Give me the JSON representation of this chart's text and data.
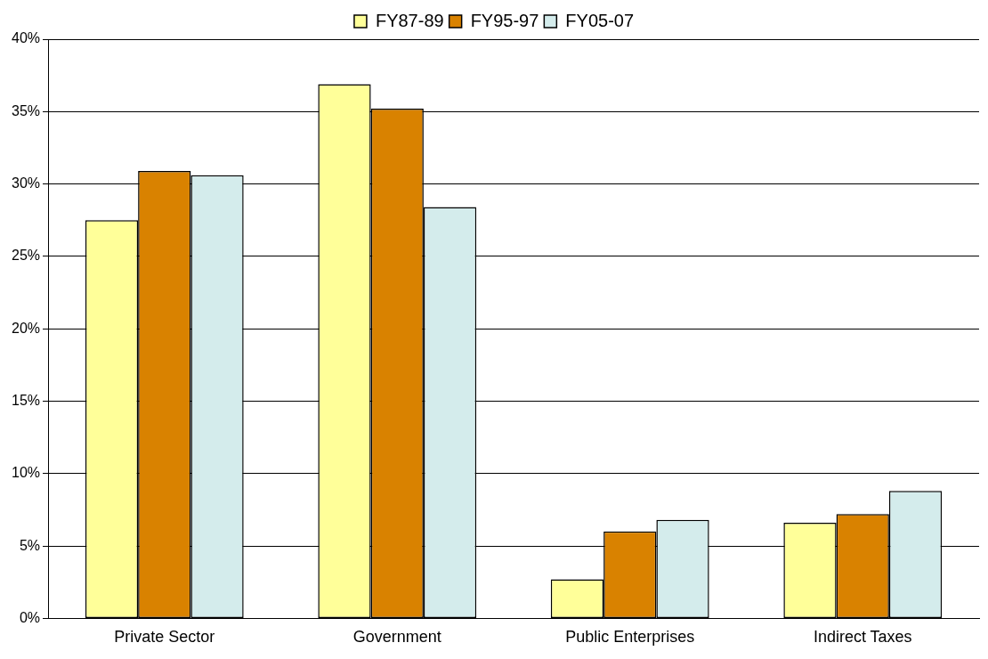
{
  "chart_data": {
    "type": "bar",
    "categories": [
      "Private Sector",
      "Government",
      "Public Enterprises",
      "Indirect Taxes"
    ],
    "series": [
      {
        "name": "FY87-89",
        "color": "#ffff99",
        "values": [
          27.5,
          36.9,
          2.7,
          6.6
        ]
      },
      {
        "name": "FY95-97",
        "color": "#d98200",
        "values": [
          30.9,
          35.2,
          6.0,
          7.2
        ]
      },
      {
        "name": "FY05-07",
        "color": "#d4ecec",
        "values": [
          30.6,
          28.4,
          6.8,
          8.8
        ]
      }
    ],
    "ylim": [
      0,
      40
    ],
    "yticks": [
      {
        "value": 0,
        "label": "0%"
      },
      {
        "value": 5,
        "label": "5%"
      },
      {
        "value": 10,
        "label": "10%"
      },
      {
        "value": 15,
        "label": "15%"
      },
      {
        "value": 20,
        "label": "20%"
      },
      {
        "value": 25,
        "label": "25%"
      },
      {
        "value": 30,
        "label": "30%"
      },
      {
        "value": 35,
        "label": "35%"
      },
      {
        "value": 40,
        "label": "40%"
      }
    ],
    "grid": "y",
    "legend": "top"
  }
}
